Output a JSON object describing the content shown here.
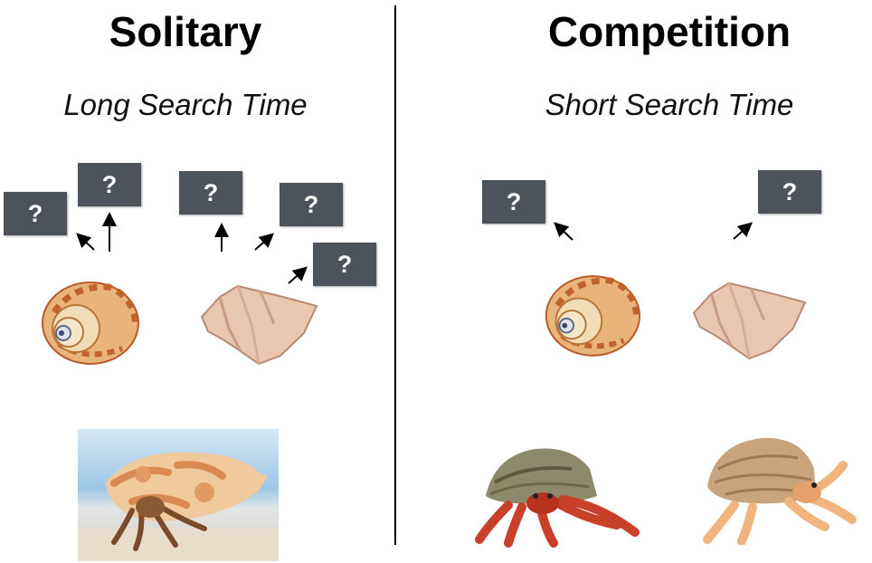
{
  "left_panel": {
    "title": "Solitary",
    "subtitle": "Long Search Time",
    "question_mark": "?"
  },
  "right_panel": {
    "title": "Competition",
    "subtitle": "Short Search Time",
    "question_mark": "?"
  },
  "colors": {
    "question_box": "#4d535a",
    "divider": "#000000"
  }
}
